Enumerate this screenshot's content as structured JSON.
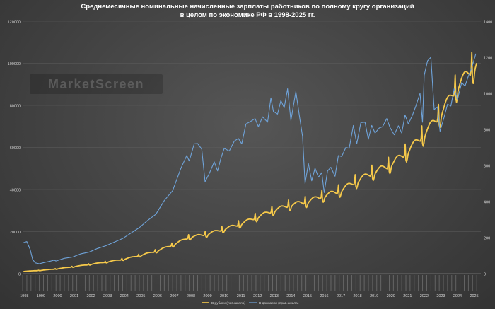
{
  "title_line1": "Среднемесячные номинальные начисленные зарплаты работников по полному кругу организаций",
  "title_line2": "в целом по экономике РФ в 1998-2025 гг.",
  "watermark": "MarketScreen",
  "colors": {
    "rub": "#f6c94a",
    "usd": "#6fa3d9",
    "grid": "#5e5e5e",
    "text": "#d8d8d8"
  },
  "chart_data": {
    "type": "line",
    "title": "Среднемесячные номинальные начисленные зарплаты работников по полному кругу организаций в целом по экономике РФ в 1998-2025 гг.",
    "x_years": [
      "1998",
      "1999",
      "2000",
      "2001",
      "2002",
      "2003",
      "2004",
      "2005",
      "2006",
      "2007",
      "2008",
      "2009",
      "2010",
      "2011",
      "2012",
      "2013",
      "2014",
      "2015",
      "2016",
      "2017",
      "2018",
      "2019",
      "2020",
      "2021",
      "2022",
      "2023",
      "2024",
      "2025"
    ],
    "y_left": {
      "min": 0,
      "max": 120000,
      "ticks": [
        0,
        20000,
        40000,
        60000,
        80000,
        100000,
        120000
      ]
    },
    "y_right": {
      "min": 0,
      "max": 1400,
      "ticks": [
        0,
        200,
        400,
        600,
        800,
        1000,
        1200,
        1400
      ]
    },
    "series": [
      {
        "name": "В рублях (лев.шкала)",
        "axis": "left",
        "annual_values": [
          1050,
          1523,
          2223,
          3240,
          4360,
          5499,
          6740,
          8555,
          10634,
          13593,
          17290,
          18638,
          20952,
          23369,
          26629,
          29792,
          32495,
          34030,
          36709,
          39167,
          43724,
          47867,
          51344,
          57244,
          65338,
          74854,
          87952,
          97645
        ]
      },
      {
        "name": "В долларах (прав.шкала)",
        "axis": "right",
        "points": [
          [
            1998.0,
            170
          ],
          [
            1998.25,
            178
          ],
          [
            1998.45,
            135
          ],
          [
            1998.6,
            80
          ],
          [
            1998.75,
            60
          ],
          [
            1999.0,
            55
          ],
          [
            1999.3,
            62
          ],
          [
            1999.6,
            68
          ],
          [
            1999.9,
            75
          ],
          [
            2000.0,
            70
          ],
          [
            2000.5,
            85
          ],
          [
            2001.0,
            92
          ],
          [
            2001.5,
            110
          ],
          [
            2002.0,
            120
          ],
          [
            2002.5,
            140
          ],
          [
            2003.0,
            155
          ],
          [
            2003.5,
            175
          ],
          [
            2004.0,
            195
          ],
          [
            2004.5,
            225
          ],
          [
            2005.0,
            255
          ],
          [
            2005.5,
            295
          ],
          [
            2006.0,
            330
          ],
          [
            2006.5,
            405
          ],
          [
            2007.0,
            460
          ],
          [
            2007.5,
            585
          ],
          [
            2007.85,
            655
          ],
          [
            2008.0,
            625
          ],
          [
            2008.3,
            720
          ],
          [
            2008.5,
            722
          ],
          [
            2008.75,
            690
          ],
          [
            2008.95,
            510
          ],
          [
            2009.2,
            555
          ],
          [
            2009.5,
            620
          ],
          [
            2009.7,
            570
          ],
          [
            2009.9,
            640
          ],
          [
            2010.1,
            695
          ],
          [
            2010.4,
            680
          ],
          [
            2010.7,
            735
          ],
          [
            2010.95,
            750
          ],
          [
            2011.15,
            720
          ],
          [
            2011.4,
            830
          ],
          [
            2011.7,
            845
          ],
          [
            2011.95,
            860
          ],
          [
            2012.15,
            815
          ],
          [
            2012.4,
            870
          ],
          [
            2012.7,
            840
          ],
          [
            2012.9,
            975
          ],
          [
            2013.05,
            900
          ],
          [
            2013.3,
            885
          ],
          [
            2013.5,
            960
          ],
          [
            2013.7,
            920
          ],
          [
            2013.9,
            1025
          ],
          [
            2014.1,
            850
          ],
          [
            2014.4,
            1010
          ],
          [
            2014.6,
            880
          ],
          [
            2014.8,
            760
          ],
          [
            2014.95,
            500
          ],
          [
            2015.15,
            610
          ],
          [
            2015.35,
            515
          ],
          [
            2015.55,
            585
          ],
          [
            2015.75,
            535
          ],
          [
            2015.95,
            560
          ],
          [
            2016.1,
            450
          ],
          [
            2016.3,
            570
          ],
          [
            2016.5,
            590
          ],
          [
            2016.75,
            540
          ],
          [
            2016.95,
            655
          ],
          [
            2017.15,
            650
          ],
          [
            2017.4,
            700
          ],
          [
            2017.6,
            695
          ],
          [
            2017.85,
            822
          ],
          [
            2018.05,
            720
          ],
          [
            2018.3,
            838
          ],
          [
            2018.55,
            840
          ],
          [
            2018.75,
            745
          ],
          [
            2018.95,
            822
          ],
          [
            2019.15,
            780
          ],
          [
            2019.4,
            808
          ],
          [
            2019.6,
            815
          ],
          [
            2019.85,
            860
          ],
          [
            2020.05,
            810
          ],
          [
            2020.3,
            770
          ],
          [
            2020.55,
            820
          ],
          [
            2020.75,
            780
          ],
          [
            2020.95,
            880
          ],
          [
            2021.15,
            830
          ],
          [
            2021.4,
            880
          ],
          [
            2021.6,
            930
          ],
          [
            2021.85,
            1000
          ],
          [
            2022.0,
            840
          ],
          [
            2022.1,
            1100
          ],
          [
            2022.3,
            1180
          ],
          [
            2022.5,
            1200
          ],
          [
            2022.7,
            910
          ],
          [
            2022.9,
            925
          ],
          [
            2023.05,
            790
          ],
          [
            2023.3,
            870
          ],
          [
            2023.5,
            940
          ],
          [
            2023.7,
            930
          ],
          [
            2023.9,
            1025
          ],
          [
            2024.1,
            965
          ],
          [
            2024.35,
            1060
          ],
          [
            2024.55,
            1040
          ],
          [
            2024.75,
            1095
          ],
          [
            2024.95,
            1140
          ],
          [
            2025.2,
            1220
          ]
        ]
      }
    ]
  }
}
